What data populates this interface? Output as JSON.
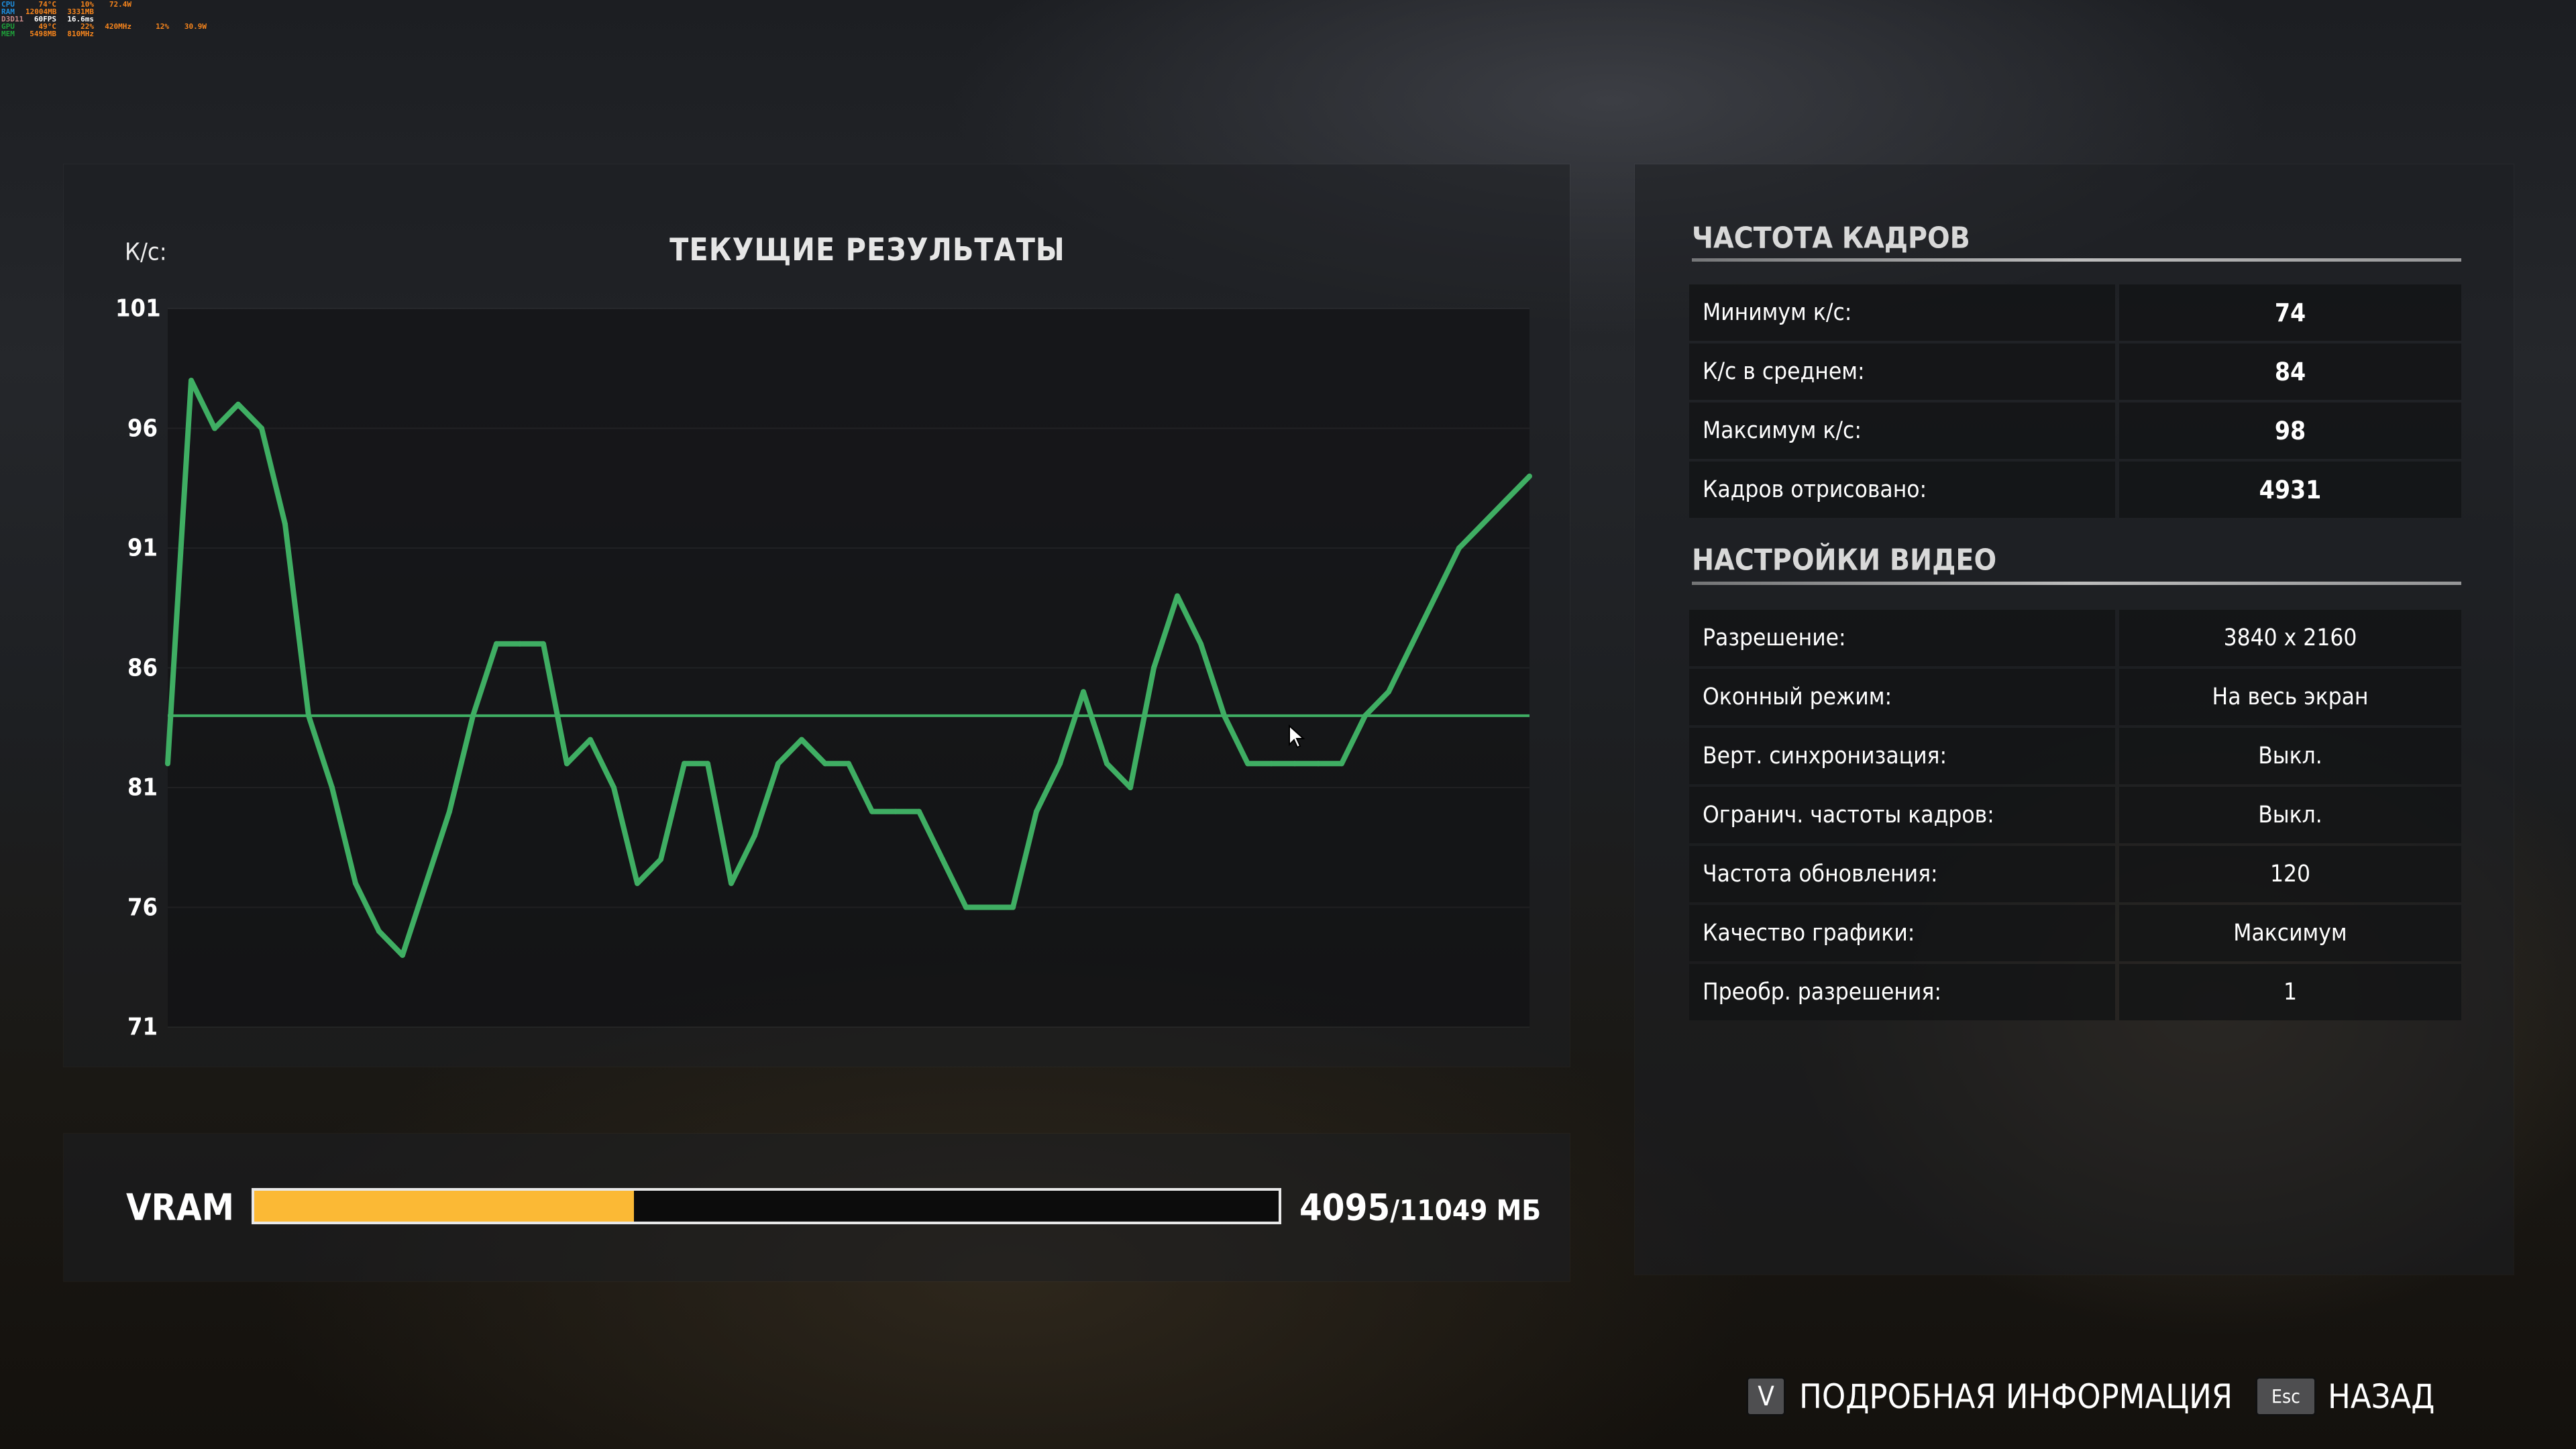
{
  "overlay": {
    "rows": [
      {
        "key": "CPU",
        "color": "#1e8fe0",
        "values": [
          "74°C",
          "10%",
          "72.4W"
        ]
      },
      {
        "key": "RAM",
        "color": "#1e8fe0",
        "values": [
          "12004MB",
          "3331MB"
        ]
      },
      {
        "key": "D3D11",
        "color": "#c98a8a",
        "values": [
          "60FPS",
          "16.6ms"
        ]
      },
      {
        "key": "GPU",
        "color": "#1fa03a",
        "values": [
          "49°C",
          "22%",
          "420MHz",
          "12%",
          "30.9W"
        ]
      },
      {
        "key": "MEM",
        "color": "#1fa03a",
        "values": [
          "5498MB",
          "810MHz"
        ]
      }
    ]
  },
  "chart": {
    "title": "ТЕКУЩИЕ РЕЗУЛЬТАТЫ",
    "unit_label": "К/с:"
  },
  "chart_data": {
    "type": "line",
    "title": "ТЕКУЩИЕ РЕЗУЛЬТАТЫ",
    "ylabel": "К/с:",
    "ylim": [
      71,
      101
    ],
    "yticks": [
      "101",
      "96",
      "91",
      "86",
      "81",
      "76",
      "71"
    ],
    "grid": true,
    "line_color": "#3fae63",
    "average": 84,
    "values": [
      82,
      98,
      96,
      97,
      96,
      92,
      84,
      81,
      77,
      75,
      74,
      77,
      80,
      84,
      87,
      87,
      87,
      82,
      83,
      81,
      77,
      78,
      82,
      82,
      77,
      79,
      82,
      83,
      82,
      82,
      80,
      80,
      80,
      78,
      76,
      76,
      76,
      80,
      82,
      85,
      82,
      81,
      86,
      89,
      87,
      84,
      82,
      82,
      82,
      82,
      82,
      84,
      85,
      87,
      89,
      91,
      92,
      93,
      94
    ]
  },
  "vram": {
    "label": "VRAM",
    "used": "4095",
    "total": "/11049 МБ",
    "fraction": 0.3706,
    "fill_color": "#fbb935"
  },
  "framerate": {
    "title": "ЧАСТОТА КАДРОВ",
    "rows": [
      {
        "label": "Минимум к/с:",
        "value": "74"
      },
      {
        "label": "К/с в среднем:",
        "value": "84"
      },
      {
        "label": "Максимум к/с:",
        "value": "98"
      },
      {
        "label": "Кадров отрисовано:",
        "value": "4931"
      }
    ]
  },
  "video": {
    "title": "НАСТРОЙКИ ВИДЕО",
    "rows": [
      {
        "label": "Разрешение:",
        "value": "3840 x 2160"
      },
      {
        "label": "Оконный режим:",
        "value": "На весь экран"
      },
      {
        "label": "Верт. синхронизация:",
        "value": "Выкл."
      },
      {
        "label": "Огранич. частоты кадров:",
        "value": "Выкл."
      },
      {
        "label": "Частота обновления:",
        "value": "120"
      },
      {
        "label": "Качество графики:",
        "value": "Максимум"
      },
      {
        "label": "Преобр. разрешения:",
        "value": "1"
      }
    ]
  },
  "footer": {
    "details_key": "V",
    "details_label": "ПОДРОБНАЯ ИНФОРМАЦИЯ",
    "back_key": "Esc",
    "back_label": "НАЗАД"
  }
}
